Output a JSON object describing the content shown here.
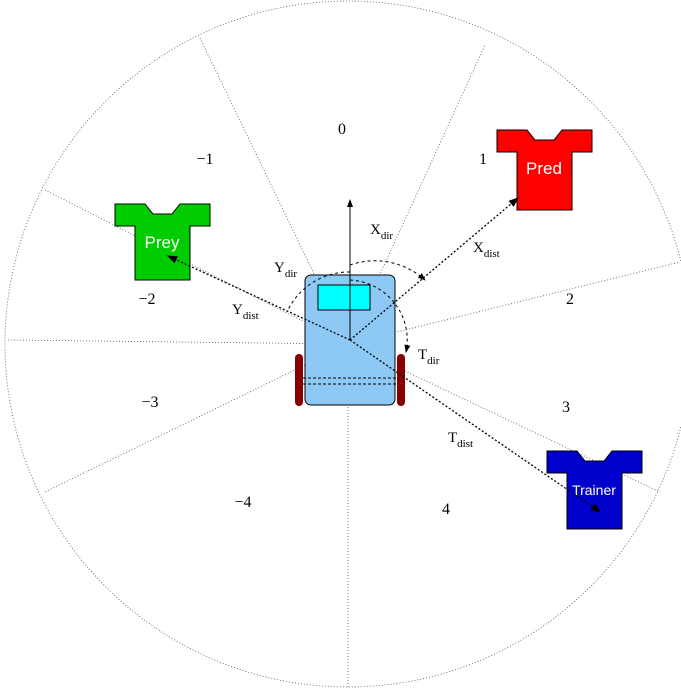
{
  "sectors": [
    {
      "label": "0"
    },
    {
      "label": "1"
    },
    {
      "label": "2"
    },
    {
      "label": "3"
    },
    {
      "label": "4"
    },
    {
      "label": "−1"
    },
    {
      "label": "−2"
    },
    {
      "label": "−3"
    },
    {
      "label": "−4"
    }
  ],
  "agents": [
    {
      "label": "Pred"
    },
    {
      "label": "Prey"
    },
    {
      "label": "Trainer"
    }
  ],
  "annotations": [
    {
      "main": "X",
      "sub": "dir"
    },
    {
      "main": "Y",
      "sub": "dir"
    },
    {
      "main": "T",
      "sub": "dir"
    },
    {
      "main": "X",
      "sub": "dist"
    },
    {
      "main": "Y",
      "sub": "dist"
    },
    {
      "main": "T",
      "sub": "dist"
    }
  ]
}
